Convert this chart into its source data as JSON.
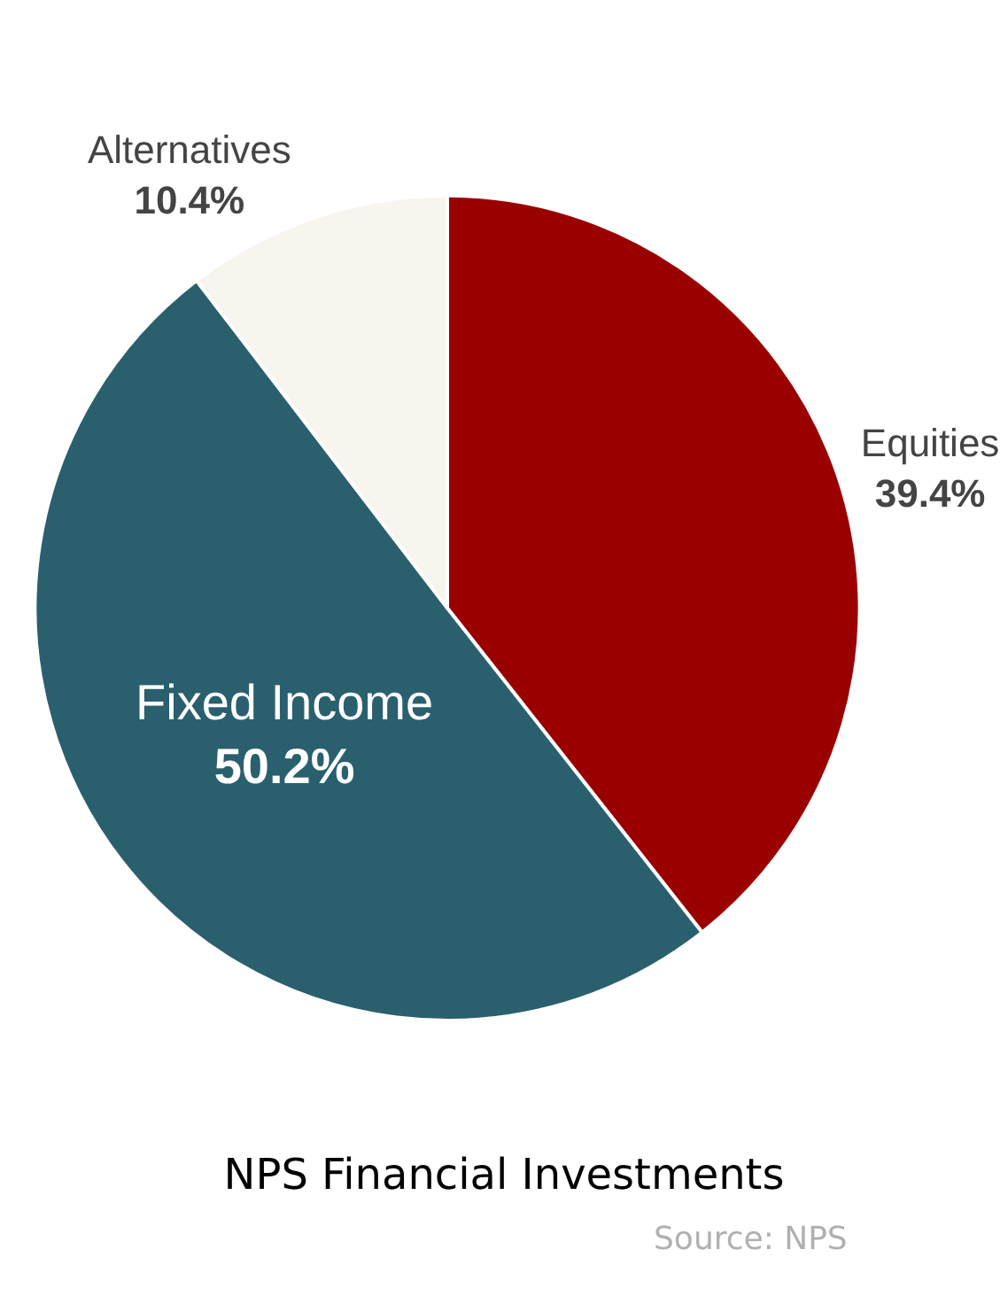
{
  "chart_data": {
    "type": "pie",
    "title": "NPS Financial Investments",
    "categories": [
      "Equities",
      "Fixed Income",
      "Alternatives"
    ],
    "values": [
      39.4,
      50.2,
      10.4
    ],
    "colors": [
      "#9b0000",
      "#2a5f6e",
      "#f8f4ee"
    ],
    "value_labels": [
      "39.4%",
      "50.2%",
      "10.4%"
    ],
    "annotations": [
      "Source: NPS"
    ],
    "legend": false
  }
}
